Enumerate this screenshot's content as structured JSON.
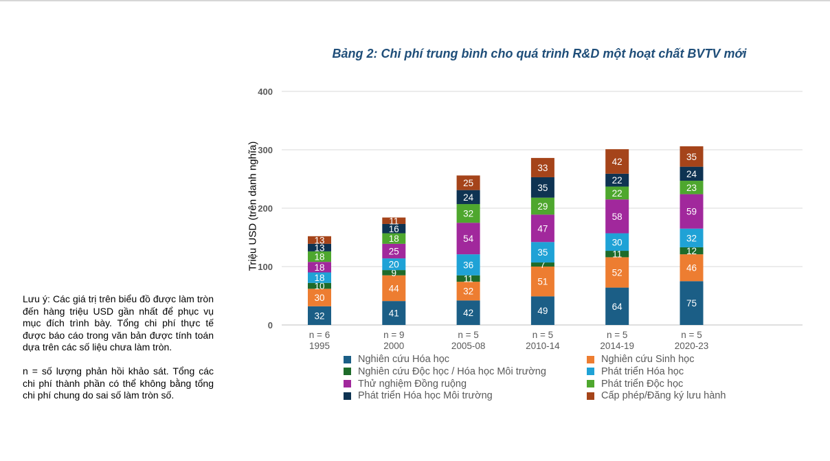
{
  "title": "Bảng 2: Chi phí trung bình cho quá trình R&D một hoạt chất BVTV mới",
  "notes": [
    "Lưu ý: Các giá trị trên biểu đồ được làm tròn đến hàng triệu USD gần nhất để phục vụ mục đích trình bày. Tổng chi phí thực tế được báo cáo trong văn bản được tính toán dựa trên các số liệu chưa làm tròn.",
    "n = số lượng phản hồi khảo sát. Tổng các chi phí thành phần có thể không bằng tổng chi phí chung do sai số làm tròn số."
  ],
  "chart_data": {
    "type": "bar",
    "stacked": true,
    "title": "Bảng 2: Chi phí trung bình cho quá trình R&D một hoạt chất BVTV mới",
    "ylabel": "Triệu USD (trên danh nghĩa)",
    "xlabel": "",
    "ylim": [
      0,
      400
    ],
    "yticks": [
      0,
      100,
      200,
      300,
      400
    ],
    "grid": true,
    "legend_position": "bottom",
    "categories": [
      "1995",
      "2000",
      "2005-08",
      "2010-14",
      "2014-19",
      "2020-23"
    ],
    "n_labels": [
      "n = 6",
      "n = 9",
      "n = 5",
      "n = 5",
      "n = 5",
      "n = 5"
    ],
    "series": [
      {
        "name": "Nghiên cứu Hóa học",
        "color": "#1b5e86",
        "values": [
          32,
          41,
          42,
          49,
          64,
          75
        ]
      },
      {
        "name": "Nghiên cứu Sinh học",
        "color": "#ed7d31",
        "values": [
          30,
          44,
          32,
          51,
          52,
          46
        ]
      },
      {
        "name": "Nghiên cứu Độc học / Hóa học Môi trường",
        "color": "#1e6b2a",
        "values": [
          10,
          9,
          11,
          7,
          11,
          12
        ]
      },
      {
        "name": "Phát triển Hóa học",
        "color": "#1fa2d6",
        "values": [
          18,
          20,
          36,
          35,
          30,
          32
        ]
      },
      {
        "name": "Thử nghiệm Đồng ruộng",
        "color": "#a1289c",
        "values": [
          18,
          25,
          54,
          47,
          58,
          59
        ]
      },
      {
        "name": "Phát triển Độc học",
        "color": "#4ea72e",
        "values": [
          18,
          18,
          32,
          29,
          22,
          23
        ]
      },
      {
        "name": "Phát triển Hóa học Môi trường",
        "color": "#0e3352",
        "values": [
          13,
          16,
          24,
          35,
          22,
          24
        ]
      },
      {
        "name": "Cấp phép/Đăng ký lưu hành",
        "color": "#a5441a",
        "values": [
          13,
          11,
          25,
          33,
          42,
          35
        ]
      }
    ]
  }
}
